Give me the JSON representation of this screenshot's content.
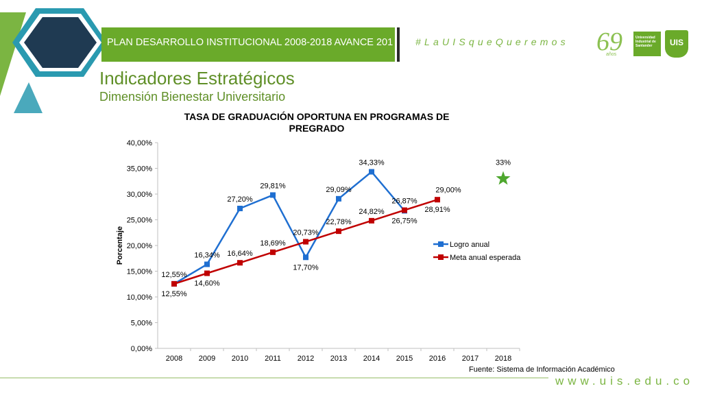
{
  "header": {
    "banner_text": "PLAN DESARROLLO INSTITUCIONAL 2008-2018 AVANCE 201",
    "hashtag": "#LaUISqueQueremos",
    "logo_years": "69",
    "logo_years_sub": "años",
    "uis_name": "Universidad Industrial de Santander",
    "uis_monogram": "UIS"
  },
  "page": {
    "title": "Indicadores Estratégicos",
    "subtitle": "Dimensión Bienestar Universitario"
  },
  "footer": {
    "source": "Fuente: Sistema de Información Académico",
    "url": "www.uis.edu.co"
  },
  "colors": {
    "brand_green": "#6aaa2a",
    "dark_teal": "#1f3a52",
    "light_teal": "#2a9ab0",
    "series_logro": "#1f6fd1",
    "series_meta": "#c00000",
    "target_star": "#4ea72e"
  },
  "chart_data": {
    "type": "line",
    "title_lines": [
      "TASA DE GRADUACIÓN OPORTUNA EN PROGRAMAS DE",
      "PREGRADO"
    ],
    "xlabel": "",
    "ylabel": "Porcentaje",
    "categories": [
      "2008",
      "2009",
      "2010",
      "2011",
      "2012",
      "2013",
      "2014",
      "2015",
      "2016",
      "2017",
      "2018"
    ],
    "ylim": [
      0,
      40
    ],
    "yticks": [
      "0,00%",
      "5,00%",
      "10,00%",
      "15,00%",
      "20,00%",
      "25,00%",
      "30,00%",
      "35,00%",
      "40,00%"
    ],
    "grid": false,
    "legend_position": "right",
    "series": [
      {
        "name": "Logro anual",
        "values": [
          12.55,
          16.34,
          27.2,
          29.81,
          17.7,
          29.09,
          34.33,
          26.75,
          null,
          null,
          null
        ],
        "labels": [
          "12,55%",
          "16,34%",
          "27,20%",
          "29,81%",
          "17,70%",
          "29,09%",
          "34,33%",
          "26,75%",
          null,
          null,
          null
        ],
        "label_pos": [
          "above",
          "above",
          "above",
          "above",
          "below",
          "above",
          "above",
          "below",
          null,
          null,
          null
        ]
      },
      {
        "name": "Meta anual esperada",
        "values": [
          12.55,
          14.6,
          16.64,
          18.69,
          20.73,
          22.78,
          24.82,
          26.87,
          28.91,
          null,
          null
        ],
        "labels": [
          "12,55%",
          "14,60%",
          "16,64%",
          "18,69%",
          "20,73%",
          "22,78%",
          "24,82%",
          "26,87%",
          "28,91%",
          null,
          null
        ],
        "label_pos": [
          "below",
          "below",
          "above",
          "above",
          "above",
          "above",
          "above",
          "above",
          "below",
          null,
          null
        ]
      }
    ],
    "annotations": [
      {
        "category": "2016",
        "value": 29.0,
        "label": "29,00%"
      },
      {
        "category": "2018",
        "value": 33.0,
        "label": "33%",
        "marker": "star"
      }
    ]
  }
}
